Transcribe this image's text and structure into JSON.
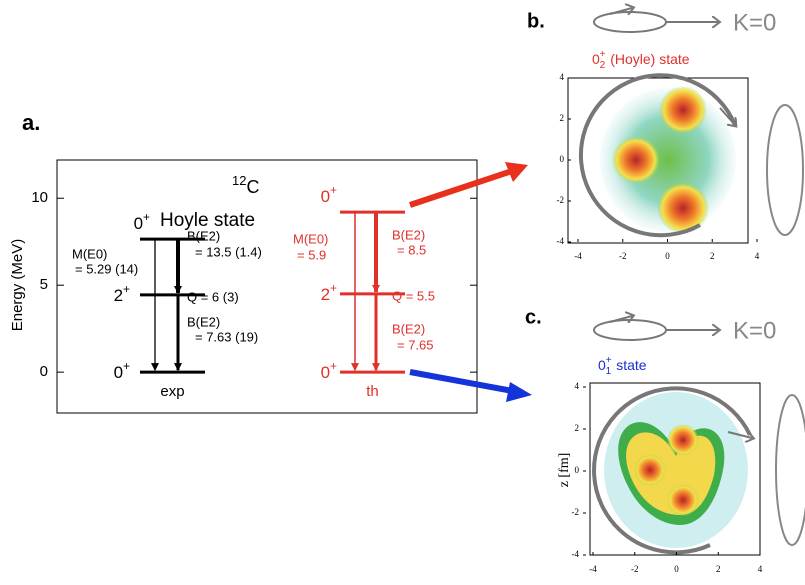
{
  "panel_a": {
    "label": "a.",
    "mass": "12",
    "element": "C",
    "ylabel": "Energy (MeV)",
    "ylim": [
      -2.35,
      12.2
    ],
    "yticks": [
      0,
      5,
      10
    ],
    "exp": {
      "name": "exp",
      "color": "#000000",
      "levels": [
        {
          "spin": "0",
          "parity": "+",
          "energy": 0
        },
        {
          "spin": "2",
          "parity": "+",
          "energy": 4.44
        },
        {
          "spin": "0",
          "parity": "+",
          "energy": 7.65,
          "note": "Hoyle state"
        }
      ],
      "transitions": [
        [
          "M(E0)",
          "= 5.29 (14)"
        ],
        [
          "B(E2)",
          "= 13.5 (1.4)"
        ],
        [
          "Q = 6 (3)"
        ],
        [
          "B(E2)",
          "= 7.63 (19)"
        ]
      ]
    },
    "th": {
      "name": "th",
      "color": "#e0302a",
      "levels": [
        {
          "spin": "0",
          "parity": "+",
          "energy": 0
        },
        {
          "spin": "2",
          "parity": "+",
          "energy": 4.5
        },
        {
          "spin": "0",
          "parity": "+",
          "energy": 9.2
        }
      ],
      "transitions": [
        [
          "M(E0)",
          "= 5.9"
        ],
        [
          "B(E2)",
          "= 8.5"
        ],
        [
          "Q = 5.5"
        ],
        [
          "B(E2)",
          "= 7.65"
        ]
      ]
    }
  },
  "panel_b": {
    "label": "b.",
    "rotation": "K=0",
    "state": {
      "spin": "0",
      "parity": "+",
      "index": "2",
      "text": "(Hoyle) state",
      "color": "#e0302a"
    },
    "xlim": [
      -4,
      4
    ],
    "ylim": [
      -4,
      4
    ],
    "xticks": [
      -4,
      -2,
      0,
      2,
      4
    ],
    "yticks": [
      -4,
      -2,
      0,
      2,
      4
    ]
  },
  "panel_c": {
    "label": "c.",
    "rotation": "K=0",
    "state": {
      "spin": "0",
      "parity": "+",
      "index": "1",
      "text": "state",
      "color": "#1a2fd0"
    },
    "ylabel": "z [fm]",
    "xlim": [
      -4,
      4
    ],
    "ylim": [
      -4,
      4
    ],
    "xticks": [
      -4,
      -2,
      0,
      2,
      4
    ],
    "yticks": [
      -4,
      -2,
      0,
      2,
      4
    ]
  }
}
